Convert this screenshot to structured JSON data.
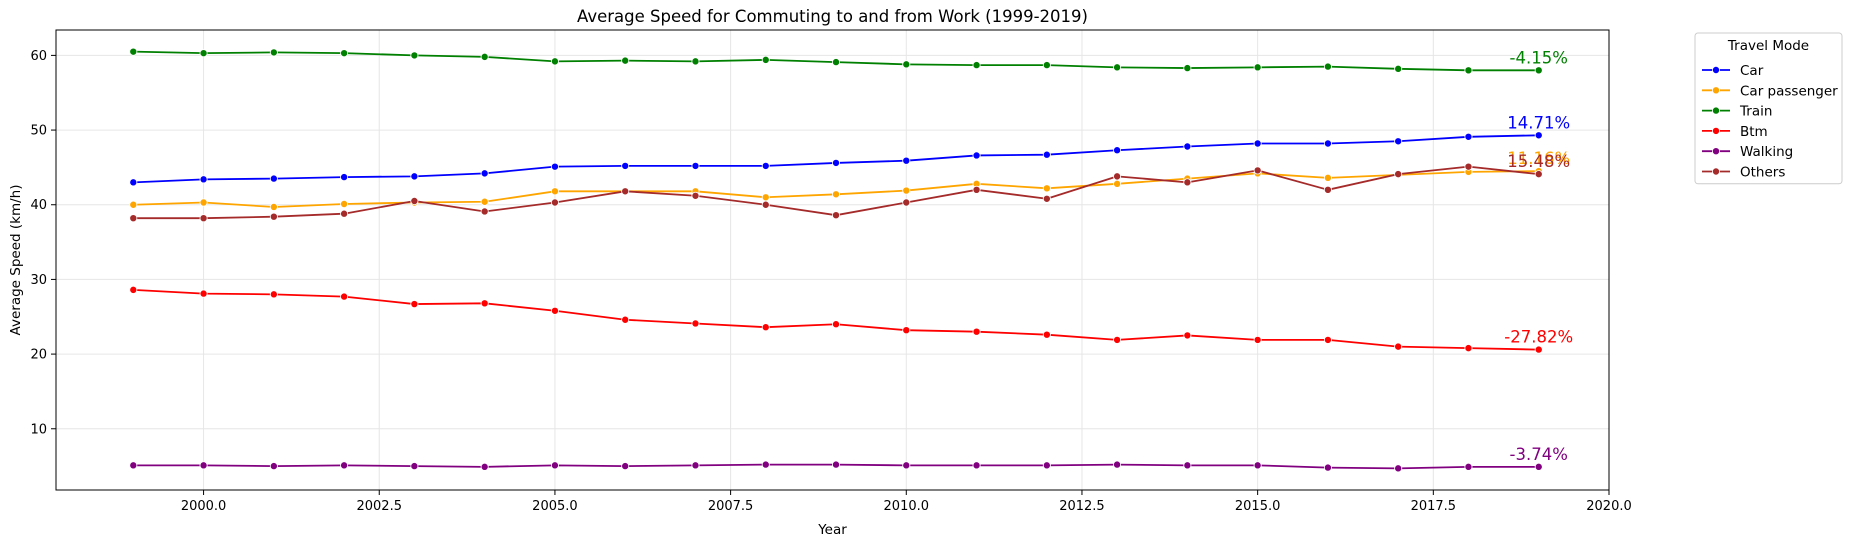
{
  "chart_data": {
    "type": "line",
    "title": "Average Speed for Commuting to and from Work (1999-2019)",
    "xlabel": "Year",
    "ylabel": "Average Speed (km/h)",
    "xlim": [
      1997.9,
      2020.0
    ],
    "ylim": [
      1.8,
      63.4
    ],
    "x_ticks": [
      2000.0,
      2002.5,
      2005.0,
      2007.5,
      2010.0,
      2012.5,
      2015.0,
      2017.5,
      2020.0
    ],
    "x_tick_labels": [
      "2000.0",
      "2002.5",
      "2005.0",
      "2007.5",
      "2010.0",
      "2012.5",
      "2015.0",
      "2017.5",
      "2020.0"
    ],
    "y_ticks": [
      10,
      20,
      30,
      40,
      50,
      60
    ],
    "y_tick_labels": [
      "10",
      "20",
      "30",
      "40",
      "50",
      "60"
    ],
    "grid": true,
    "legend": {
      "title": "Travel Mode",
      "placement": "outside-top-right"
    },
    "x": [
      1999,
      2000,
      2001,
      2002,
      2003,
      2004,
      2005,
      2006,
      2007,
      2008,
      2009,
      2010,
      2011,
      2012,
      2013,
      2014,
      2015,
      2016,
      2017,
      2018,
      2019
    ],
    "series": [
      {
        "name": "Car",
        "color": "#0000ff",
        "values": [
          43.0,
          43.4,
          43.5,
          43.7,
          43.8,
          44.2,
          45.1,
          45.2,
          45.2,
          45.2,
          45.6,
          45.9,
          46.6,
          46.7,
          47.3,
          47.8,
          48.2,
          48.2,
          48.5,
          49.1,
          49.3
        ],
        "annotation": "14.71%"
      },
      {
        "name": "Car passenger",
        "color": "#ffa500",
        "values": [
          40.0,
          40.3,
          39.7,
          40.1,
          40.3,
          40.4,
          41.8,
          41.8,
          41.8,
          41.0,
          41.4,
          41.9,
          42.8,
          42.2,
          42.8,
          43.5,
          44.2,
          43.6,
          44.0,
          44.4,
          44.5
        ],
        "annotation": "11.16%"
      },
      {
        "name": "Train",
        "color": "#008000",
        "values": [
          60.5,
          60.3,
          60.4,
          60.3,
          60.0,
          59.8,
          59.2,
          59.3,
          59.2,
          59.4,
          59.1,
          58.8,
          58.7,
          58.7,
          58.4,
          58.3,
          58.4,
          58.5,
          58.2,
          58.0,
          58.0
        ],
        "annotation": "-4.15%"
      },
      {
        "name": "Btm",
        "color": "#ff0000",
        "values": [
          28.6,
          28.1,
          28.0,
          27.7,
          26.7,
          26.8,
          25.8,
          24.6,
          24.1,
          23.6,
          24.0,
          23.2,
          23.0,
          22.6,
          21.9,
          22.5,
          21.9,
          21.9,
          21.0,
          20.8,
          20.6
        ],
        "annotation": "-27.82%"
      },
      {
        "name": "Walking",
        "color": "#800080",
        "values": [
          5.1,
          5.1,
          5.0,
          5.1,
          5.0,
          4.9,
          5.1,
          5.0,
          5.1,
          5.2,
          5.2,
          5.1,
          5.1,
          5.1,
          5.2,
          5.1,
          5.1,
          4.8,
          4.7,
          4.9,
          4.9
        ],
        "annotation": "-3.74%"
      },
      {
        "name": "Others",
        "color": "#a52a2a",
        "values": [
          38.2,
          38.2,
          38.4,
          38.8,
          40.5,
          39.1,
          40.3,
          41.8,
          41.2,
          40.0,
          38.6,
          40.3,
          42.0,
          40.8,
          43.8,
          43.0,
          44.6,
          42.0,
          44.1,
          45.1,
          44.1
        ],
        "annotation": "15.48%"
      }
    ]
  }
}
